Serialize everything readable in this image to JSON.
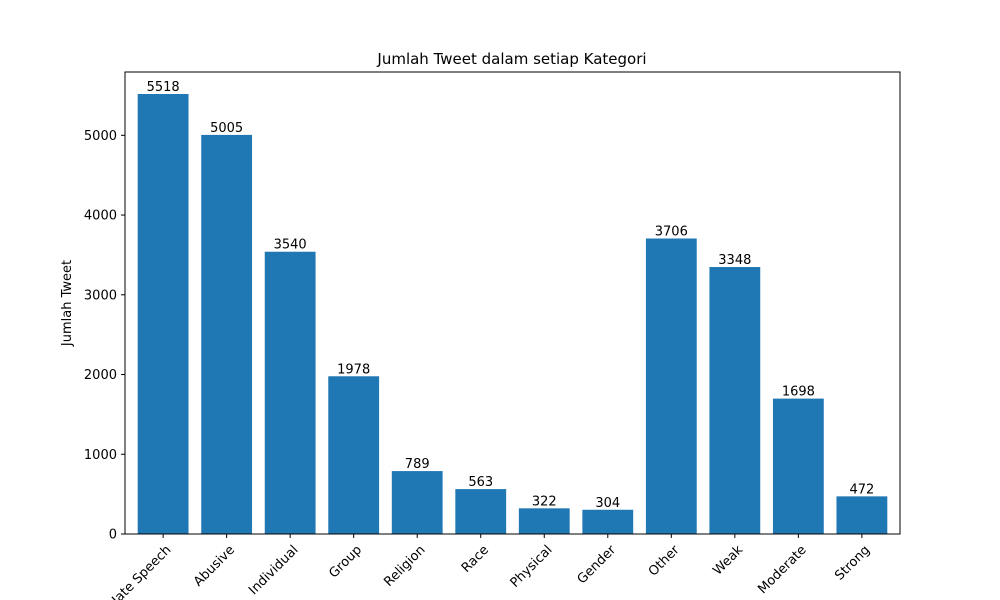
{
  "chart_data": {
    "type": "bar",
    "title": "Jumlah Tweet dalam setiap Kategori",
    "xlabel": "",
    "ylabel": "Jumlah Tweet",
    "categories": [
      "Hate Speech",
      "Abusive",
      "Individual",
      "Group",
      "Religion",
      "Race",
      "Physical",
      "Gender",
      "Other",
      "Weak",
      "Moderate",
      "Strong"
    ],
    "values": [
      5518,
      5005,
      3540,
      1978,
      789,
      563,
      322,
      304,
      3706,
      3348,
      1698,
      472
    ],
    "data_labels": [
      "5518",
      "5005",
      "3540",
      "1978",
      "789",
      "563",
      "322",
      "304",
      "3706",
      "3348",
      "1698",
      "472"
    ],
    "ylim": [
      0,
      5794
    ],
    "yticks": [
      0,
      1000,
      2000,
      3000,
      4000,
      5000
    ],
    "ytick_labels": [
      "0",
      "1000",
      "2000",
      "3000",
      "4000",
      "5000"
    ],
    "bar_color": "#1f77b4",
    "grid": false,
    "xtick_rotation_deg": 45
  }
}
